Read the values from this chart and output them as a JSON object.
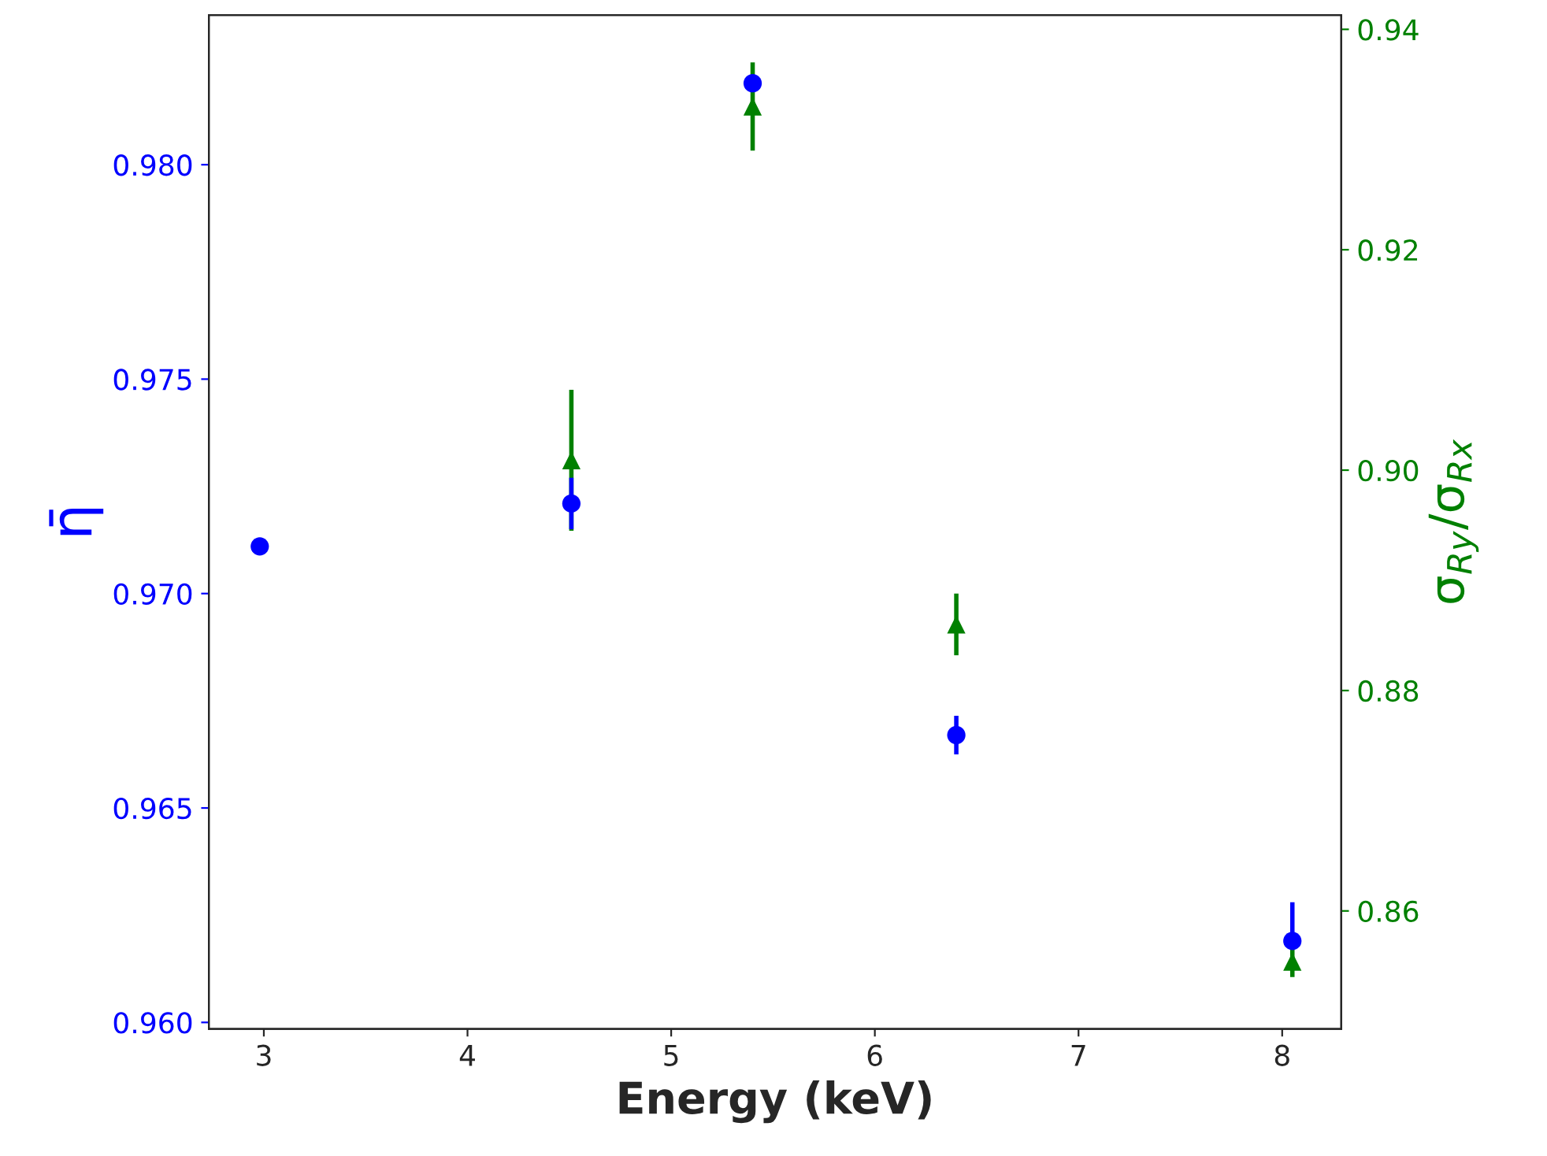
{
  "chart_data": {
    "type": "scatter",
    "xlabel": "Energy (keV)",
    "ylabel": "η̄",
    "y2label": "σ$_{Ry}$/σ$_{Rx}$",
    "x": [
      2.98,
      4.51,
      5.4,
      6.4,
      8.05
    ],
    "series": [
      {
        "color": "#0000ff",
        "marker": "circle",
        "values": [
          0.9711,
          0.9721,
          0.9819,
          0.9667,
          0.9619
        ],
        "errors": [
          null,
          0.0006,
          0.0001,
          0.00045,
          [
            0.9617,
            0.9628
          ]
        ]
      },
      {
        "color": "#008000",
        "marker": "triangle",
        "axis": "y2",
        "x": [
          4.51,
          5.4,
          6.4,
          8.05
        ],
        "values": [
          0.9009,
          0.933,
          0.886,
          0.8554
        ],
        "errors": [
          0.0064,
          0.004,
          0.0028,
          0.0014
        ]
      }
    ],
    "xlim": [
      2.73,
      8.29
    ],
    "xticks": [
      3,
      4,
      5,
      6,
      7,
      8
    ],
    "ylim": [
      0.95985,
      0.98349
    ],
    "yticks": [
      {
        "value": 0.96,
        "label": "0.960"
      },
      0.965,
      {
        "value": 0.97,
        "label": "0.970"
      },
      0.975,
      {
        "value": 0.98,
        "label": "0.980"
      }
    ],
    "y2lim": [
      0.8493,
      0.9413
    ],
    "y2ticks": [
      0.86,
      0.88,
      {
        "value": 0.9,
        "label": "0.90"
      },
      0.92,
      0.94
    ],
    "grid": false,
    "legend": false
  }
}
